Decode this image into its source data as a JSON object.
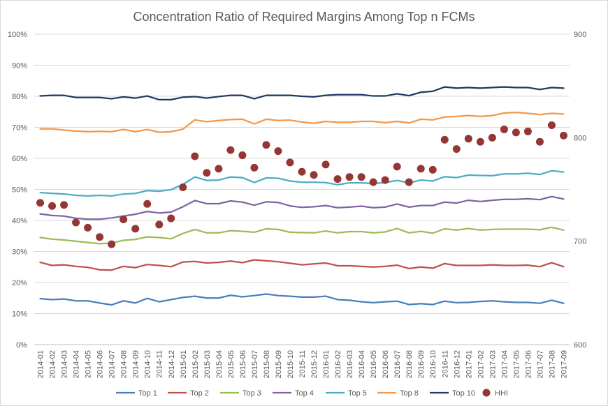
{
  "chart_data": {
    "type": "line",
    "title": "Concentration Ratio of Required Margins Among Top n FCMs",
    "categories": [
      "2014-01",
      "2014-02",
      "2014-03",
      "2014-04",
      "2014-05",
      "2014-06",
      "2014-07",
      "2014-08",
      "2014-09",
      "2014-10",
      "2014-11",
      "2014-12",
      "2015-01",
      "2015-02",
      "2015-03",
      "2015-04",
      "2015-05",
      "2015-06",
      "2015-07",
      "2015-08",
      "2015-09",
      "2015-10",
      "2015-11",
      "2015-12",
      "2016-01",
      "2016-02",
      "2016-03",
      "2016-04",
      "2016-05",
      "2016-06",
      "2016-07",
      "2016-08",
      "2016-09",
      "2016-10",
      "2016-11",
      "2016-12",
      "2017-01",
      "2017-02",
      "2017-03",
      "2017-04",
      "2017-05",
      "2017-06",
      "2017-07",
      "2017-08",
      "2017-09"
    ],
    "y_left": {
      "min": 0,
      "max": 100,
      "step": 10,
      "format": "percent"
    },
    "y_right": {
      "min": 600,
      "max": 900,
      "step": 100
    },
    "grid": true,
    "legend_position": "bottom",
    "series": [
      {
        "name": "Top 1",
        "color": "#4a7ebb",
        "axis": "left",
        "values": [
          14.8,
          14.5,
          14.7,
          14.1,
          14.1,
          13.4,
          12.8,
          14.1,
          13.4,
          14.9,
          13.8,
          14.5,
          15.2,
          15.6,
          15.0,
          15.0,
          15.9,
          15.4,
          15.8,
          16.3,
          15.8,
          15.6,
          15.3,
          15.3,
          15.6,
          14.5,
          14.3,
          13.8,
          13.5,
          13.8,
          14.0,
          12.9,
          13.2,
          12.9,
          14.0,
          13.5,
          13.6,
          13.9,
          14.1,
          13.8,
          13.6,
          13.6,
          13.3,
          14.3,
          13.3
        ]
      },
      {
        "name": "Top 2",
        "color": "#c0504d",
        "axis": "left",
        "values": [
          26.5,
          25.5,
          25.7,
          25.2,
          24.9,
          24.1,
          24.0,
          25.2,
          24.8,
          25.8,
          25.5,
          25.1,
          26.6,
          26.8,
          26.3,
          26.5,
          26.9,
          26.4,
          27.3,
          27.0,
          26.7,
          26.2,
          25.7,
          26.0,
          26.3,
          25.4,
          25.4,
          25.2,
          25.0,
          25.2,
          25.6,
          24.5,
          25.0,
          24.6,
          26.1,
          25.5,
          25.5,
          25.5,
          25.7,
          25.5,
          25.5,
          25.6,
          25.1,
          26.4,
          25.1
        ]
      },
      {
        "name": "Top 3",
        "color": "#9bbb59",
        "axis": "left",
        "values": [
          34.5,
          34.0,
          33.7,
          33.3,
          32.9,
          32.5,
          32.7,
          33.6,
          33.9,
          34.7,
          34.5,
          34.1,
          35.8,
          37.1,
          36.0,
          36.0,
          36.7,
          36.5,
          36.2,
          37.3,
          37.1,
          36.2,
          36.1,
          36.0,
          36.6,
          36.0,
          36.4,
          36.4,
          36.0,
          36.3,
          37.4,
          36.0,
          36.5,
          35.9,
          37.3,
          36.9,
          37.4,
          36.9,
          37.1,
          37.2,
          37.2,
          37.2,
          37.0,
          37.8,
          36.9
        ]
      },
      {
        "name": "Top 4",
        "color": "#8064a2",
        "axis": "left",
        "values": [
          42.1,
          41.6,
          41.4,
          40.7,
          40.4,
          40.4,
          40.8,
          41.4,
          42.0,
          42.9,
          42.4,
          42.7,
          44.4,
          46.4,
          45.4,
          45.4,
          46.3,
          45.9,
          44.9,
          46.0,
          45.8,
          44.7,
          44.2,
          44.4,
          44.8,
          44.1,
          44.3,
          44.6,
          44.1,
          44.3,
          45.3,
          44.3,
          44.8,
          44.8,
          45.9,
          45.6,
          46.5,
          46.1,
          46.5,
          46.8,
          46.8,
          47.0,
          46.7,
          47.7,
          46.9
        ]
      },
      {
        "name": "Top 5",
        "color": "#4bacc6",
        "axis": "left",
        "values": [
          49.0,
          48.7,
          48.5,
          48.1,
          47.9,
          48.1,
          47.9,
          48.5,
          48.7,
          49.6,
          49.4,
          49.9,
          51.6,
          54.0,
          52.9,
          53.0,
          54.0,
          53.8,
          52.2,
          53.7,
          53.6,
          52.7,
          52.3,
          52.3,
          52.2,
          51.5,
          52.1,
          52.1,
          51.9,
          52.2,
          52.9,
          52.1,
          53.0,
          52.7,
          54.1,
          53.8,
          54.6,
          54.5,
          54.4,
          55.0,
          55.0,
          55.2,
          54.8,
          56.0,
          55.6
        ]
      },
      {
        "name": "Top 8",
        "color": "#f79646",
        "axis": "left",
        "values": [
          69.5,
          69.5,
          69.1,
          68.8,
          68.6,
          68.7,
          68.6,
          69.3,
          68.6,
          69.3,
          68.4,
          68.6,
          69.4,
          72.4,
          71.8,
          72.2,
          72.5,
          72.6,
          71.1,
          72.6,
          72.2,
          72.3,
          71.7,
          71.3,
          71.9,
          71.6,
          71.6,
          71.9,
          71.9,
          71.5,
          71.9,
          71.4,
          72.6,
          72.4,
          73.3,
          73.5,
          73.8,
          73.5,
          73.8,
          74.6,
          74.8,
          74.5,
          74.1,
          74.5,
          74.3
        ]
      },
      {
        "name": "Top 10",
        "color": "#1f3864",
        "axis": "left",
        "values": [
          80.1,
          80.3,
          80.3,
          79.6,
          79.6,
          79.6,
          79.2,
          79.8,
          79.4,
          80.1,
          78.9,
          78.9,
          79.7,
          79.9,
          79.4,
          79.9,
          80.3,
          80.3,
          79.2,
          80.3,
          80.3,
          80.3,
          80.0,
          79.8,
          80.3,
          80.5,
          80.5,
          80.5,
          80.1,
          80.1,
          80.8,
          80.2,
          81.3,
          81.6,
          83.0,
          82.6,
          82.8,
          82.6,
          82.8,
          83.0,
          82.8,
          82.8,
          82.2,
          82.8,
          82.6
        ]
      },
      {
        "name": "HHI",
        "color": "#943634",
        "axis": "right",
        "kind": "scatter",
        "values": [
          737,
          734,
          735,
          718,
          713,
          704,
          697,
          721,
          712,
          736,
          716,
          722,
          752,
          782,
          766,
          770,
          788,
          783,
          771,
          793,
          787,
          776,
          767,
          764,
          774,
          760,
          762,
          762,
          757,
          759,
          772,
          757,
          770,
          769,
          798,
          789,
          799,
          796,
          800,
          808,
          805,
          806,
          796,
          812,
          802
        ]
      }
    ]
  }
}
